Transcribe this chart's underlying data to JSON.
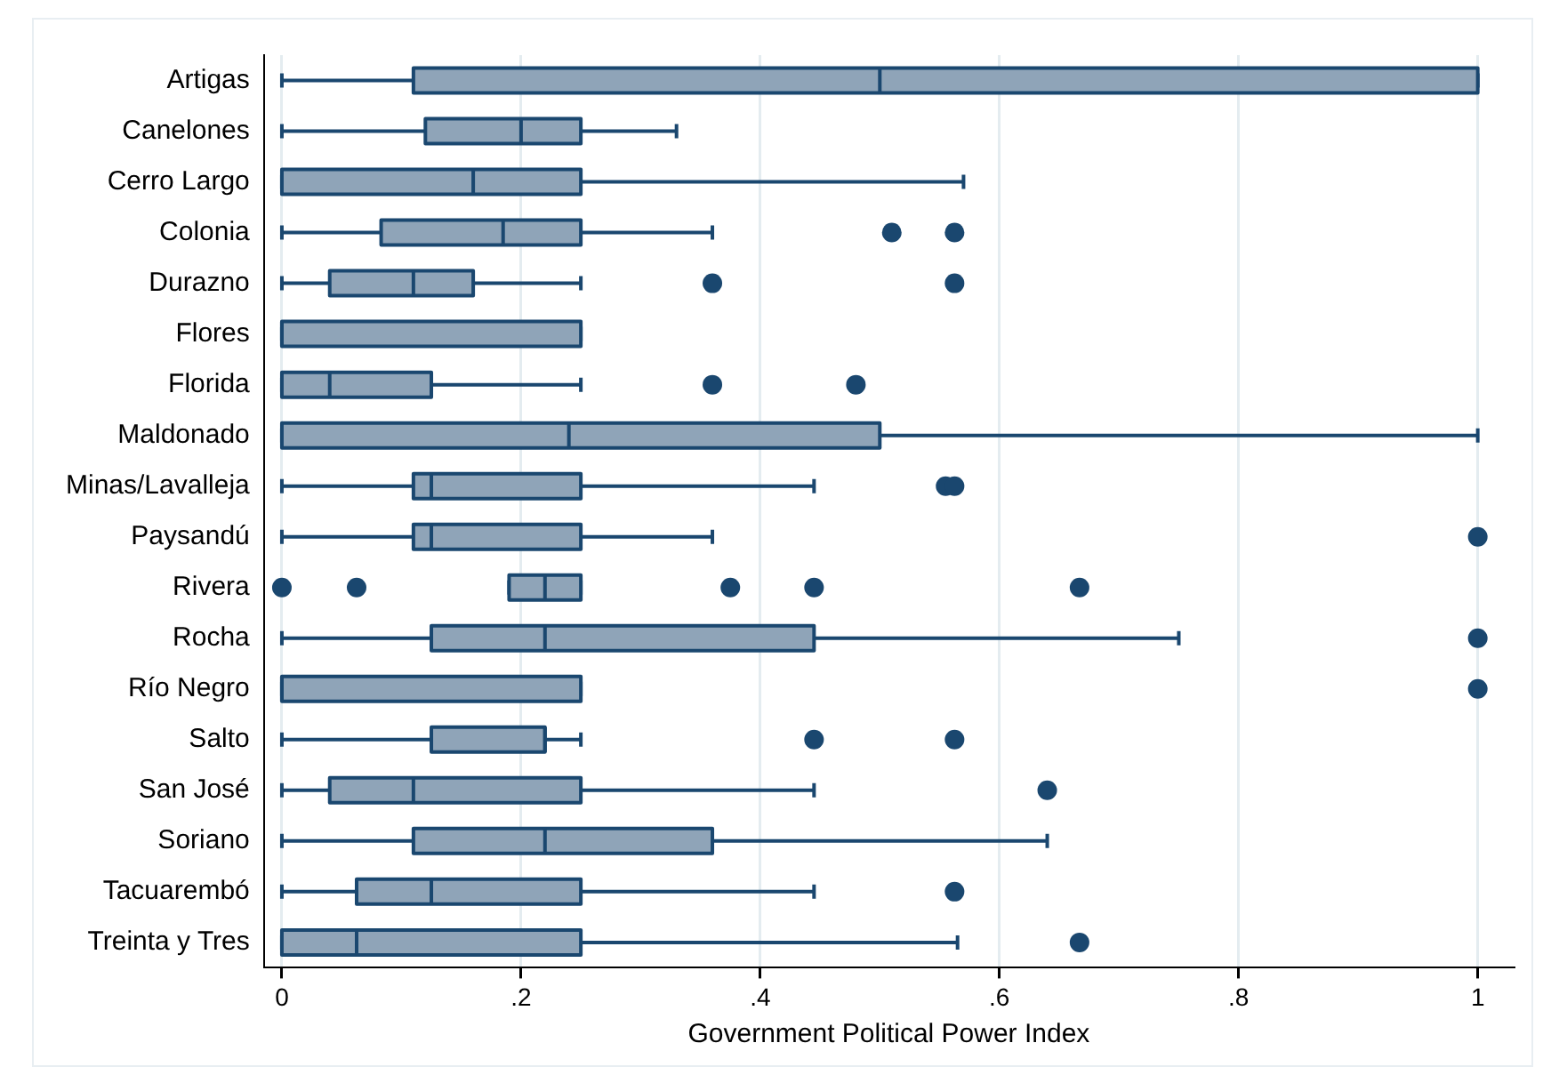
{
  "chart_data": {
    "type": "box",
    "orientation": "horizontal",
    "xlabel": "Government Political Power Index",
    "categories": [
      "Artigas",
      "Canelones",
      "Cerro Largo",
      "Colonia",
      "Durazno",
      "Flores",
      "Florida",
      "Maldonado",
      "Minas/Lavalleja",
      "Paysandú",
      "Rivera",
      "Rocha",
      "Río Negro",
      "Salto",
      "San José",
      "Soriano",
      "Tacuarembó",
      "Treinta y Tres"
    ],
    "color": "#8fa4b8",
    "xlim": [
      -0.015,
      1.03
    ],
    "xticks": [
      {
        "value": 0,
        "label": "0"
      },
      {
        "value": 0.2,
        "label": ".2"
      },
      {
        "value": 0.4,
        "label": ".4"
      },
      {
        "value": 0.6,
        "label": ".6"
      },
      {
        "value": 0.8,
        "label": ".8"
      },
      {
        "value": 1,
        "label": "1"
      }
    ],
    "grid": "x",
    "marker": "circle",
    "boxes": [
      {
        "low": 0,
        "q1": 0.11,
        "median": 0.5,
        "q3": 1,
        "high": 1
      },
      {
        "low": 0,
        "q1": 0.12,
        "median": 0.2,
        "q3": 0.25,
        "high": 0.33
      },
      {
        "low": 0,
        "q1": 0,
        "median": 0.16,
        "q3": 0.25,
        "high": 0.57
      },
      {
        "low": 0,
        "q1": 0.083,
        "median": 0.185,
        "q3": 0.25,
        "high": 0.36,
        "outliers": [
          0.51,
          0.5625
        ]
      },
      {
        "low": 0,
        "q1": 0.04,
        "median": 0.11,
        "q3": 0.16,
        "high": 0.25,
        "outliers": [
          0.36,
          0.5625
        ]
      },
      {
        "low": 0,
        "q1": 0,
        "median": 0,
        "q3": 0.25,
        "high": 0.25
      },
      {
        "low": 0,
        "q1": 0,
        "median": 0.04,
        "q3": 0.125,
        "high": 0.25,
        "outliers": [
          0.36,
          0.48
        ]
      },
      {
        "low": 0,
        "q1": 0,
        "median": 0.24,
        "q3": 0.5,
        "high": 1
      },
      {
        "low": 0,
        "q1": 0.11,
        "median": 0.125,
        "q3": 0.25,
        "high": 0.445,
        "outliers": [
          0.555,
          0.5625
        ]
      },
      {
        "low": 0,
        "q1": 0.11,
        "median": 0.125,
        "q3": 0.25,
        "high": 0.36,
        "outliers": [
          1
        ]
      },
      {
        "low": 0.19,
        "q1": 0.19,
        "median": 0.22,
        "q3": 0.25,
        "high": 0.25,
        "outliers": [
          0,
          0.0625,
          0.375,
          0.445,
          0.667
        ]
      },
      {
        "low": 0,
        "q1": 0.125,
        "median": 0.22,
        "q3": 0.445,
        "high": 0.75,
        "outliers": [
          1
        ]
      },
      {
        "low": 0,
        "q1": 0,
        "median": 0,
        "q3": 0.25,
        "high": 0.25,
        "outliers": [
          1
        ]
      },
      {
        "low": 0,
        "q1": 0.125,
        "median": 0.22,
        "q3": 0.22,
        "high": 0.25,
        "outliers": [
          0.445,
          0.5625
        ]
      },
      {
        "low": 0,
        "q1": 0.04,
        "median": 0.11,
        "q3": 0.25,
        "high": 0.445,
        "outliers": [
          0.64
        ]
      },
      {
        "low": 0,
        "q1": 0.11,
        "median": 0.22,
        "q3": 0.36,
        "high": 0.64
      },
      {
        "low": 0,
        "q1": 0.0625,
        "median": 0.125,
        "q3": 0.25,
        "high": 0.445,
        "outliers": [
          0.5625
        ]
      },
      {
        "low": 0,
        "q1": 0,
        "median": 0.0625,
        "q3": 0.25,
        "high": 0.565,
        "outliers": [
          0.667
        ]
      }
    ]
  }
}
